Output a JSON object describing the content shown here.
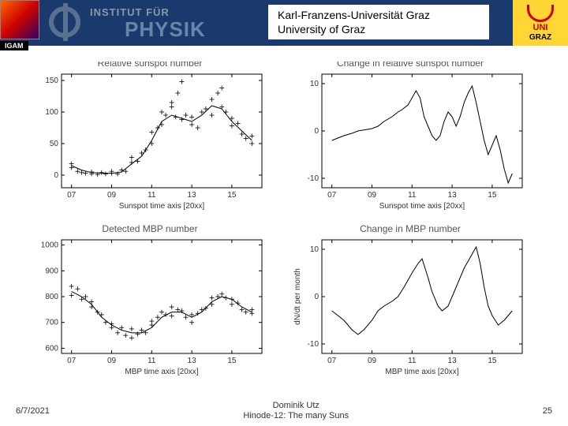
{
  "header": {
    "institut": "INSTITUT FÜR",
    "physik": "PHYSIK",
    "igam": "IGAM",
    "uni_de": "Karl-Franzens-Universität Graz",
    "uni_en": "University of Graz",
    "logo_uni": "UNI",
    "logo_graz": "GRAZ",
    "bg_color": "#1a3a6e",
    "logo_bg": "#ffd633"
  },
  "footer": {
    "date": "6/7/2021",
    "author": "Dominik Utz",
    "conference": "Hinode-12: The many Suns",
    "page": "25"
  },
  "panels": {
    "layout": "2x2",
    "stroke_color": "#000000",
    "tick_fontsize": 10,
    "title_fontsize": 12,
    "line_width": 1,
    "marker": "+",
    "marker_size": 6,
    "tl": {
      "title": "Relative sunspot number",
      "xlabel": "Sunspot time axis [20xx]",
      "xticks": [
        "07",
        "09",
        "11",
        "13",
        "15"
      ],
      "xlim": [
        6.5,
        16.5
      ],
      "ylim": [
        -20,
        160
      ],
      "yticks": [
        0,
        50,
        100,
        150
      ],
      "line": [
        [
          7,
          15
        ],
        [
          7.5,
          8
        ],
        [
          8,
          4
        ],
        [
          8.5,
          3
        ],
        [
          9,
          3
        ],
        [
          9.5,
          5
        ],
        [
          10,
          18
        ],
        [
          10.5,
          30
        ],
        [
          11,
          55
        ],
        [
          11.5,
          85
        ],
        [
          12,
          95
        ],
        [
          12.5,
          90
        ],
        [
          13,
          85
        ],
        [
          13.5,
          95
        ],
        [
          14,
          110
        ],
        [
          14.5,
          105
        ],
        [
          15,
          85
        ],
        [
          15.5,
          70
        ],
        [
          16,
          55
        ]
      ],
      "scatter": [
        [
          7,
          18
        ],
        [
          7,
          12
        ],
        [
          7.3,
          6
        ],
        [
          7.5,
          4
        ],
        [
          7.7,
          3
        ],
        [
          8,
          5
        ],
        [
          8,
          2
        ],
        [
          8.3,
          1
        ],
        [
          8.5,
          4
        ],
        [
          8.7,
          2
        ],
        [
          9,
          3
        ],
        [
          9,
          6
        ],
        [
          9.3,
          2
        ],
        [
          9.5,
          8
        ],
        [
          9.7,
          6
        ],
        [
          10,
          20
        ],
        [
          10,
          28
        ],
        [
          10.3,
          22
        ],
        [
          10.5,
          35
        ],
        [
          10.7,
          40
        ],
        [
          11,
          50
        ],
        [
          11,
          68
        ],
        [
          11.3,
          75
        ],
        [
          11.5,
          100
        ],
        [
          11.5,
          80
        ],
        [
          11.7,
          95
        ],
        [
          12,
          115
        ],
        [
          12,
          108
        ],
        [
          12.2,
          92
        ],
        [
          12.3,
          130
        ],
        [
          12.5,
          88
        ],
        [
          12.5,
          148
        ],
        [
          12.7,
          95
        ],
        [
          13,
          80
        ],
        [
          13,
          92
        ],
        [
          13.3,
          75
        ],
        [
          13.5,
          100
        ],
        [
          13.7,
          105
        ],
        [
          14,
          120
        ],
        [
          14,
          95
        ],
        [
          14.3,
          130
        ],
        [
          14.5,
          138
        ],
        [
          14.5,
          108
        ],
        [
          14.7,
          100
        ],
        [
          15,
          90
        ],
        [
          15,
          78
        ],
        [
          15.3,
          82
        ],
        [
          15.5,
          65
        ],
        [
          15.7,
          58
        ],
        [
          16,
          50
        ],
        [
          16,
          62
        ]
      ]
    },
    "tr": {
      "title": "Change in relative sunspot number",
      "xlabel": "Sunspot time axis [20xx]",
      "xticks": [
        "07",
        "09",
        "11",
        "13",
        "15"
      ],
      "xlim": [
        6.5,
        16.5
      ],
      "ylim": [
        -12,
        12
      ],
      "yticks": [
        -10,
        0,
        10
      ],
      "line": [
        [
          7,
          -2
        ],
        [
          7.3,
          -1.5
        ],
        [
          7.6,
          -1
        ],
        [
          8,
          -0.5
        ],
        [
          8.3,
          0
        ],
        [
          8.6,
          0.2
        ],
        [
          9,
          0.5
        ],
        [
          9.3,
          1
        ],
        [
          9.6,
          2
        ],
        [
          10,
          3
        ],
        [
          10.3,
          4
        ],
        [
          10.5,
          4.5
        ],
        [
          10.8,
          5.5
        ],
        [
          11,
          7
        ],
        [
          11.2,
          8.5
        ],
        [
          11.4,
          7
        ],
        [
          11.6,
          3
        ],
        [
          11.8,
          1
        ],
        [
          12,
          -1
        ],
        [
          12.2,
          -2
        ],
        [
          12.4,
          -1
        ],
        [
          12.6,
          2
        ],
        [
          12.8,
          4
        ],
        [
          13,
          3
        ],
        [
          13.2,
          1
        ],
        [
          13.4,
          3
        ],
        [
          13.6,
          6
        ],
        [
          13.8,
          8
        ],
        [
          14,
          9.5
        ],
        [
          14.2,
          6
        ],
        [
          14.4,
          2
        ],
        [
          14.6,
          -2
        ],
        [
          14.8,
          -5
        ],
        [
          15,
          -3
        ],
        [
          15.2,
          -1
        ],
        [
          15.4,
          -4
        ],
        [
          15.6,
          -8
        ],
        [
          15.8,
          -11
        ],
        [
          16,
          -9
        ]
      ]
    },
    "bl": {
      "title": "Detected MBP number",
      "xlabel": "MBP time axis [20xx]",
      "xticks": [
        "07",
        "09",
        "11",
        "13",
        "15"
      ],
      "xlim": [
        6.5,
        16.5
      ],
      "ylim": [
        580,
        1020
      ],
      "yticks": [
        600,
        700,
        800,
        900,
        1000
      ],
      "line": [
        [
          7,
          820
        ],
        [
          7.5,
          800
        ],
        [
          8,
          770
        ],
        [
          8.5,
          720
        ],
        [
          9,
          690
        ],
        [
          9.5,
          670
        ],
        [
          10,
          660
        ],
        [
          10.5,
          660
        ],
        [
          11,
          680
        ],
        [
          11.5,
          720
        ],
        [
          12,
          740
        ],
        [
          12.5,
          740
        ],
        [
          13,
          720
        ],
        [
          13.5,
          740
        ],
        [
          14,
          780
        ],
        [
          14.5,
          800
        ],
        [
          15,
          790
        ],
        [
          15.5,
          760
        ],
        [
          16,
          740
        ]
      ],
      "scatter": [
        [
          7,
          840
        ],
        [
          7,
          805
        ],
        [
          7.3,
          830
        ],
        [
          7.5,
          790
        ],
        [
          7.7,
          800
        ],
        [
          8,
          780
        ],
        [
          8,
          760
        ],
        [
          8.3,
          740
        ],
        [
          8.5,
          730
        ],
        [
          8.7,
          700
        ],
        [
          9,
          695
        ],
        [
          9,
          680
        ],
        [
          9.3,
          660
        ],
        [
          9.5,
          680
        ],
        [
          9.7,
          650
        ],
        [
          10,
          640
        ],
        [
          10,
          675
        ],
        [
          10.3,
          655
        ],
        [
          10.5,
          670
        ],
        [
          10.7,
          660
        ],
        [
          11,
          690
        ],
        [
          11,
          705
        ],
        [
          11.3,
          720
        ],
        [
          11.5,
          740
        ],
        [
          11.7,
          730
        ],
        [
          12,
          760
        ],
        [
          12,
          725
        ],
        [
          12.3,
          750
        ],
        [
          12.5,
          745
        ],
        [
          12.7,
          720
        ],
        [
          13,
          700
        ],
        [
          13,
          730
        ],
        [
          13.3,
          735
        ],
        [
          13.5,
          750
        ],
        [
          13.7,
          755
        ],
        [
          14,
          795
        ],
        [
          14,
          770
        ],
        [
          14.3,
          800
        ],
        [
          14.5,
          810
        ],
        [
          14.7,
          795
        ],
        [
          15,
          790
        ],
        [
          15,
          770
        ],
        [
          15.3,
          775
        ],
        [
          15.5,
          750
        ],
        [
          15.7,
          740
        ],
        [
          16,
          735
        ],
        [
          16,
          750
        ]
      ]
    },
    "br": {
      "title": "Change in MBP number",
      "xlabel": "MBP time axis [20xx]",
      "ylabel": "dN/dt per month",
      "xticks": [
        "07",
        "09",
        "11",
        "13",
        "15"
      ],
      "xlim": [
        6.5,
        16.5
      ],
      "ylim": [
        -12,
        12
      ],
      "yticks": [
        -10,
        0,
        10
      ],
      "line": [
        [
          7,
          -3
        ],
        [
          7.3,
          -4
        ],
        [
          7.6,
          -5
        ],
        [
          8,
          -7
        ],
        [
          8.3,
          -8
        ],
        [
          8.6,
          -7
        ],
        [
          9,
          -5
        ],
        [
          9.3,
          -3
        ],
        [
          9.6,
          -2
        ],
        [
          10,
          -1
        ],
        [
          10.3,
          0
        ],
        [
          10.6,
          2
        ],
        [
          11,
          5
        ],
        [
          11.3,
          7
        ],
        [
          11.5,
          8
        ],
        [
          11.8,
          4
        ],
        [
          12,
          1
        ],
        [
          12.3,
          -2
        ],
        [
          12.5,
          -3
        ],
        [
          12.8,
          -2
        ],
        [
          13,
          0
        ],
        [
          13.3,
          3
        ],
        [
          13.6,
          6
        ],
        [
          14,
          9
        ],
        [
          14.2,
          10.5
        ],
        [
          14.4,
          7
        ],
        [
          14.6,
          2
        ],
        [
          14.8,
          -2
        ],
        [
          15,
          -4
        ],
        [
          15.3,
          -6
        ],
        [
          15.6,
          -5
        ],
        [
          16,
          -3
        ]
      ]
    }
  }
}
